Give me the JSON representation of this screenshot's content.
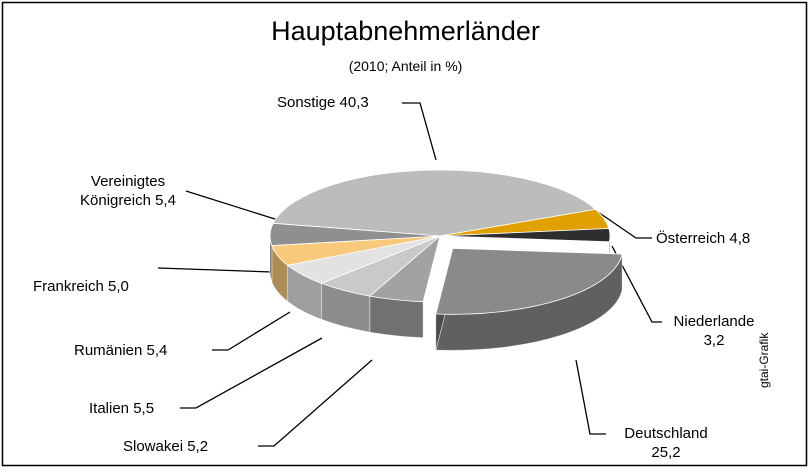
{
  "chart_data": {
    "type": "pie3d",
    "title": "Hauptabnehmerländer",
    "subtitle": "(2010; Anteil in %)",
    "source": "gtai-Grafik",
    "categories": [
      "Sonstige",
      "Österreich",
      "Niederlande",
      "Deutschland",
      "Slowakei",
      "Italien",
      "Rumänien",
      "Frankreich",
      "Vereinigtes Königreich"
    ],
    "values": [
      40.3,
      4.8,
      3.2,
      25.2,
      5.2,
      5.5,
      5.4,
      5.0,
      5.4
    ],
    "value_labels": [
      "40,3",
      "4,8",
      "3,2",
      "25,2",
      "5,2",
      "5,5",
      "5,4",
      "5,0",
      "5,4"
    ],
    "colors": [
      "#bcbcbc",
      "#dfa000",
      "#2e2e2e",
      "#8a8a8a",
      "#a2a2a2",
      "#c9c9c9",
      "#e2e2e2",
      "#f8c97a",
      "#8f8f8f"
    ]
  }
}
